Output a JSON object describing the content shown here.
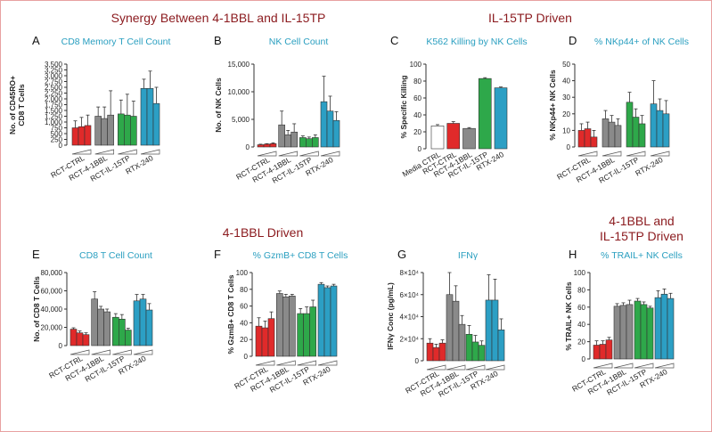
{
  "section_titles": {
    "synergy": "Synergy Between 4-1BBL and IL-15TP",
    "il15tp": "IL-15TP Driven",
    "fourbbl": "4-1BBL Driven",
    "both_line1": "4-1BBL and",
    "both_line2": "IL-15TP Driven"
  },
  "colors": {
    "title_red": "#8b1a1e",
    "panel_title": "#2a9fc0",
    "red": "#e02a2a",
    "gray": "#8a8a8a",
    "green": "#2ea84a",
    "blue": "#2c9fc4"
  },
  "chart_data": [
    {
      "id": "A",
      "type": "bar",
      "title": "CD8 Memory T Cell Count",
      "ylabel": [
        "No. of CD45RO+",
        "CD8 T Cells"
      ],
      "ylim": [
        0,
        3500
      ],
      "yticks": [
        "0",
        "250",
        "500",
        "750",
        "1,000",
        "1,250",
        "1,500",
        "1,750",
        "2,000",
        "2,250",
        "2,500",
        "2,750",
        "3,000",
        "3,250",
        "3,500"
      ],
      "groups": [
        "RCT-CTRL",
        "RCT-4-1BBL",
        "RCT-IL-15TP",
        "RTX-240"
      ],
      "series_colors": [
        "red",
        "gray",
        "green",
        "blue"
      ],
      "values": [
        [
          750,
          800,
          850
        ],
        [
          1250,
          1150,
          1300
        ],
        [
          1350,
          1300,
          1250
        ],
        [
          2450,
          2450,
          1800
        ]
      ],
      "errors": [
        [
          300,
          400,
          450
        ],
        [
          400,
          500,
          1050
        ],
        [
          600,
          900,
          650
        ],
        [
          400,
          750,
          700
        ]
      ]
    },
    {
      "id": "B",
      "type": "bar",
      "title": "NK Cell Count",
      "ylabel": [
        "No. of NK Cells"
      ],
      "ylim": [
        0,
        15000
      ],
      "yticks": [
        "0",
        "5,000",
        "10,000",
        "15,000"
      ],
      "groups": [
        "RCT-CTRL",
        "RCT-4-1BBL",
        "RCT-IL-15TP",
        "RTX-240"
      ],
      "series_colors": [
        "red",
        "gray",
        "green",
        "blue"
      ],
      "values": [
        [
          400,
          500,
          600
        ],
        [
          4000,
          2200,
          2700
        ],
        [
          1700,
          1500,
          1700
        ],
        [
          8200,
          6500,
          4800
        ]
      ],
      "errors": [
        [
          100,
          100,
          150
        ],
        [
          2500,
          800,
          1500
        ],
        [
          300,
          300,
          500
        ],
        [
          4600,
          2700,
          1600
        ]
      ]
    },
    {
      "id": "C",
      "type": "bar",
      "title": "K562 Killing by NK Cells",
      "ylabel": [
        "% Specific Killing"
      ],
      "ylim": [
        0,
        100
      ],
      "yticks": [
        "0",
        "20",
        "40",
        "60",
        "80",
        "100"
      ],
      "groups": [
        "Media CTRL",
        "RCT-CTRL",
        "RCT-4-1BBL",
        "RCT-IL-15TP",
        "RTX-240"
      ],
      "series_colors": [
        "white",
        "red",
        "gray",
        "green",
        "blue"
      ],
      "values": [
        [
          27
        ],
        [
          30
        ],
        [
          24
        ],
        [
          83
        ],
        [
          72
        ]
      ],
      "errors": [
        [
          1.5
        ],
        [
          2
        ],
        [
          1
        ],
        [
          1
        ],
        [
          1
        ]
      ]
    },
    {
      "id": "D",
      "type": "bar",
      "title": "% NKp44+ of NK Cells",
      "ylabel": [
        "% NKp44+ NK Cells"
      ],
      "ylim": [
        0,
        50
      ],
      "yticks": [
        "0",
        "10",
        "20",
        "30",
        "40",
        "50"
      ],
      "groups": [
        "RCT-CTRL",
        "RCT-4-1BBL",
        "RCT-IL-15TP",
        "RTX-240"
      ],
      "series_colors": [
        "red",
        "gray",
        "green",
        "blue"
      ],
      "values": [
        [
          10,
          11,
          6
        ],
        [
          17,
          15,
          13
        ],
        [
          27,
          18,
          14
        ],
        [
          26,
          22,
          20
        ]
      ],
      "errors": [
        [
          4,
          4,
          4
        ],
        [
          5,
          4,
          4
        ],
        [
          6,
          5,
          5
        ],
        [
          14,
          7,
          8
        ]
      ]
    },
    {
      "id": "E",
      "type": "bar",
      "title": "CD8 T Cell Count",
      "ylabel": [
        "No. of CD8 T Cells"
      ],
      "ylim": [
        0,
        80000
      ],
      "yticks": [
        "0",
        "20,000",
        "40,000",
        "60,000",
        "80,000"
      ],
      "groups": [
        "RCT-CTRL",
        "RCT-4-1BBL",
        "RCT-IL-15TP",
        "RTX-240"
      ],
      "series_colors": [
        "red",
        "gray",
        "green",
        "blue"
      ],
      "values": [
        [
          18000,
          14000,
          12000
        ],
        [
          51000,
          40000,
          37000
        ],
        [
          31000,
          29000,
          17000
        ],
        [
          49000,
          51000,
          39000
        ]
      ],
      "errors": [
        [
          1500,
          2000,
          2000
        ],
        [
          8000,
          3000,
          3000
        ],
        [
          4000,
          5000,
          2000
        ],
        [
          7000,
          5000,
          7000
        ]
      ]
    },
    {
      "id": "F",
      "type": "bar",
      "title": "% GzmB+ CD8 T Cells",
      "ylabel": [
        "% GzmB+ CD8 T Cells"
      ],
      "ylim": [
        0,
        100
      ],
      "yticks": [
        "0",
        "20",
        "40",
        "60",
        "80",
        "100"
      ],
      "groups": [
        "RCT-CTRL",
        "RCT-4-1BBL",
        "RCT-IL-15TP",
        "RTX-240"
      ],
      "series_colors": [
        "red",
        "gray",
        "green",
        "blue"
      ],
      "values": [
        [
          36,
          34,
          45
        ],
        [
          75,
          71,
          72
        ],
        [
          51,
          51,
          59
        ],
        [
          86,
          82,
          84
        ]
      ],
      "errors": [
        [
          10,
          8,
          8
        ],
        [
          3,
          3,
          2
        ],
        [
          6,
          8,
          8
        ],
        [
          2,
          2,
          2
        ]
      ]
    },
    {
      "id": "G",
      "type": "bar",
      "title": "IFNγ",
      "ylabel": [
        "IFNγ Conc (pg/mL)"
      ],
      "ylim": [
        0,
        80000
      ],
      "yticks": [
        "0",
        "2×10⁴",
        "4×10⁴",
        "6×10⁴",
        "8×10⁴"
      ],
      "groups": [
        "RCT-CTRL",
        "RCT-4-1BBL",
        "RCT-IL-15TP",
        "RTX-240"
      ],
      "series_colors": [
        "red",
        "gray",
        "green",
        "blue"
      ],
      "values": [
        [
          16000,
          12000,
          16000
        ],
        [
          60000,
          54000,
          33000
        ],
        [
          24000,
          17000,
          14000
        ],
        [
          55000,
          55000,
          28000
        ]
      ],
      "errors": [
        [
          4000,
          3000,
          3000
        ],
        [
          20000,
          14000,
          8000
        ],
        [
          8000,
          6000,
          4000
        ],
        [
          23000,
          19000,
          10000
        ]
      ]
    },
    {
      "id": "H",
      "type": "bar",
      "title": "% TRAIL+ NK Cells",
      "ylabel": [
        "% TRAIL+ NK Cells"
      ],
      "ylim": [
        0,
        100
      ],
      "yticks": [
        "0",
        "20",
        "40",
        "60",
        "80",
        "100"
      ],
      "groups": [
        "RCT-CTRL",
        "RCT-4-1BBL",
        "RCT-IL-15TP",
        "RTX-240"
      ],
      "series_colors": [
        "red",
        "gray",
        "green",
        "blue"
      ],
      "values": [
        [
          16,
          17,
          22
        ],
        [
          61,
          62,
          63
        ],
        [
          67,
          63,
          59
        ],
        [
          71,
          75,
          70
        ]
      ],
      "errors": [
        [
          5,
          4,
          3
        ],
        [
          3,
          3,
          5
        ],
        [
          3,
          3,
          2
        ],
        [
          8,
          6,
          6
        ]
      ]
    }
  ]
}
